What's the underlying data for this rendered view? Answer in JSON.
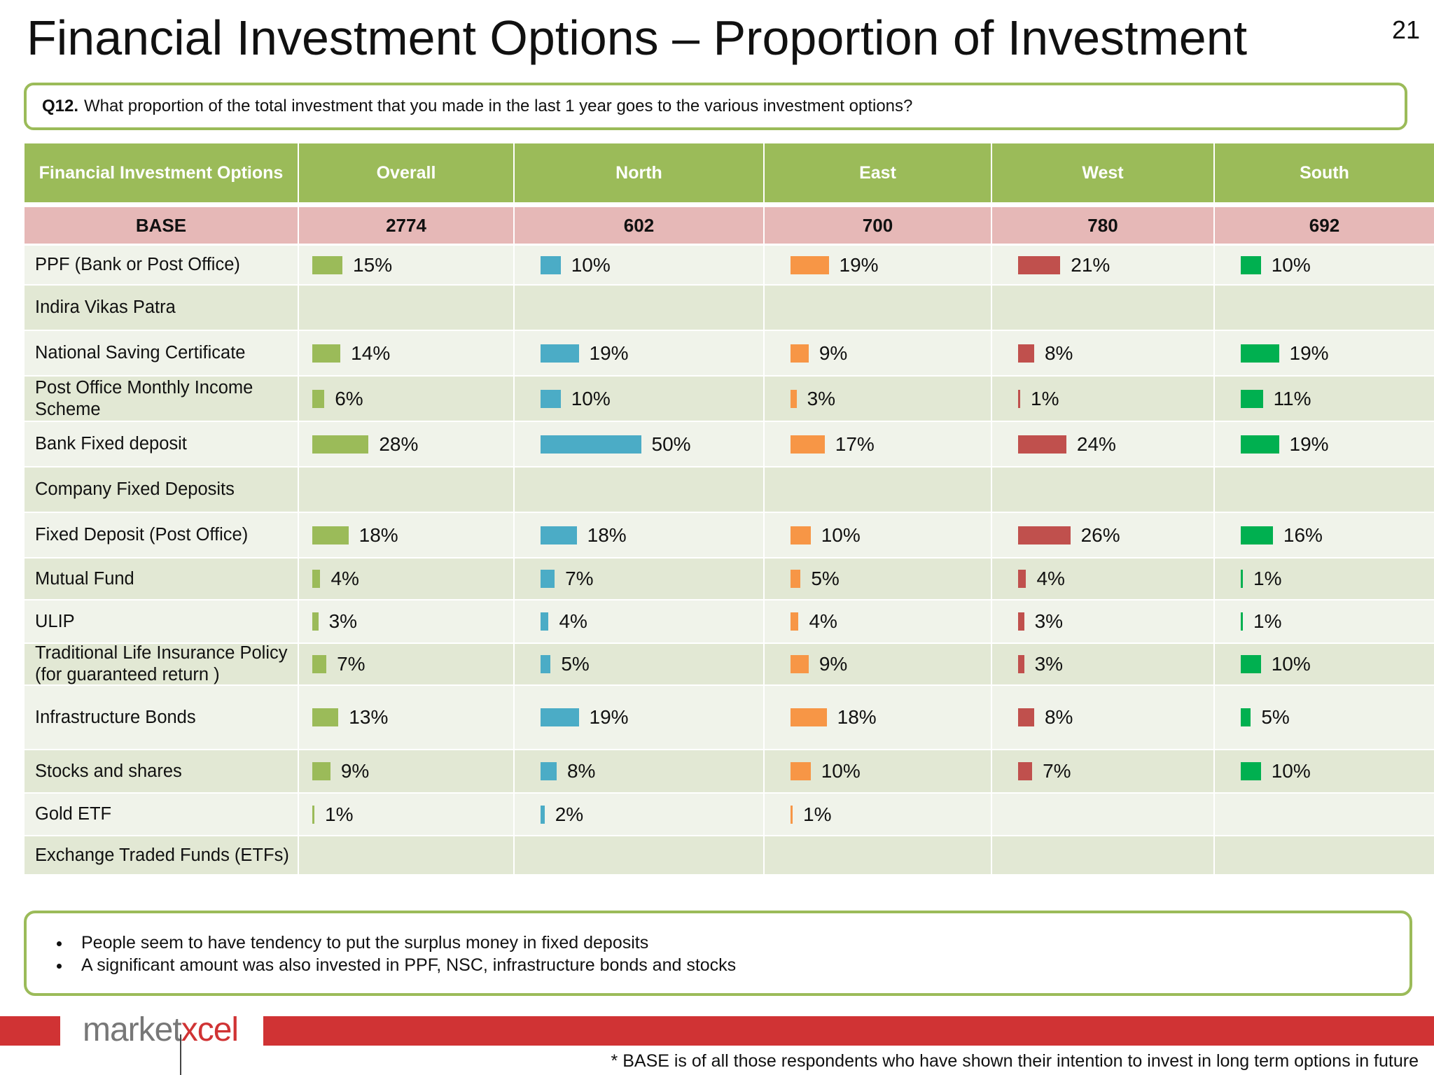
{
  "title": "Financial Investment Options – Proportion of Investment",
  "page_number": "21",
  "question": {
    "id": "Q12.",
    "text": "What proportion of the total investment that you made in the last 1 year goes to the various investment options?"
  },
  "chart_data": {
    "type": "table",
    "header_first": "Financial Investment Options",
    "columns": [
      "Overall",
      "North",
      "East",
      "West",
      "South"
    ],
    "base_label": "BASE",
    "base": [
      "2774",
      "602",
      "700",
      "780",
      "692"
    ],
    "colors": [
      "#9bbb59",
      "#4bacc6",
      "#f79646",
      "#c0504d",
      "#00b050"
    ],
    "rows": [
      {
        "label": "PPF (Bank or Post Office)",
        "values": [
          15,
          10,
          19,
          21,
          10
        ]
      },
      {
        "label": "Indira Vikas Patra",
        "values": [
          null,
          null,
          null,
          null,
          null
        ]
      },
      {
        "label": "National Saving Certificate",
        "values": [
          14,
          19,
          9,
          8,
          19
        ]
      },
      {
        "label": "Post Office Monthly Income Scheme",
        "values": [
          6,
          10,
          3,
          1,
          11
        ]
      },
      {
        "label": "Bank Fixed deposit",
        "values": [
          28,
          50,
          17,
          24,
          19
        ]
      },
      {
        "label": "Company Fixed Deposits",
        "values": [
          null,
          null,
          null,
          null,
          null
        ]
      },
      {
        "label": "Fixed Deposit (Post Office)",
        "values": [
          18,
          18,
          10,
          26,
          16
        ]
      },
      {
        "label": "Mutual Fund",
        "values": [
          4,
          7,
          5,
          4,
          1
        ]
      },
      {
        "label": "ULIP",
        "values": [
          3,
          4,
          4,
          3,
          1
        ]
      },
      {
        "label": "Traditional Life Insurance Policy (for guaranteed return )",
        "values": [
          7,
          5,
          9,
          3,
          10
        ]
      },
      {
        "label": "Infrastructure Bonds",
        "values": [
          13,
          19,
          18,
          8,
          5
        ]
      },
      {
        "label": "Stocks and shares",
        "values": [
          9,
          8,
          10,
          7,
          10
        ]
      },
      {
        "label": "Gold ETF",
        "values": [
          1,
          2,
          1,
          null,
          null
        ]
      },
      {
        "label": "Exchange Traded Funds (ETFs)",
        "values": [
          null,
          null,
          null,
          null,
          null
        ]
      }
    ]
  },
  "bullets": [
    "People seem to have tendency to put the surplus money in fixed deposits",
    "A significant amount was also invested in PPF, NSC, infrastructure bonds and stocks"
  ],
  "logo_text": {
    "before": "market",
    "after": "xcel"
  },
  "footnote": "* BASE is of all those respondents who have shown their intention to invest in long term options in future"
}
